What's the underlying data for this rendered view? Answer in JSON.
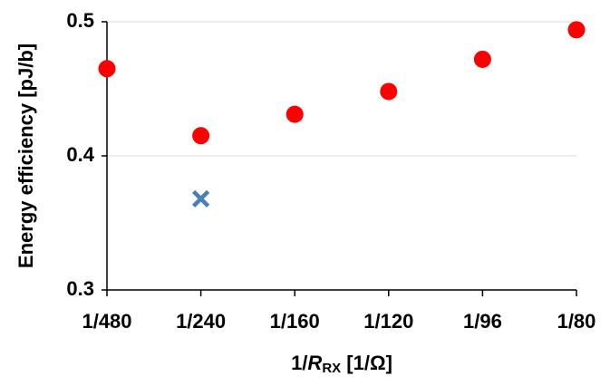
{
  "chart_data": {
    "type": "scatter",
    "categories": [
      "1/480",
      "1/240",
      "1/160",
      "1/120",
      "1/96",
      "1/80"
    ],
    "series": [
      {
        "color": "#ff0000",
        "marker": "circle",
        "values": [
          0.465,
          0.415,
          0.431,
          0.448,
          0.472,
          0.494
        ]
      },
      {
        "color": "#4a7ebb",
        "marker": "cross",
        "values": [
          null,
          0.368,
          null,
          null,
          null,
          null
        ]
      }
    ],
    "ylim": [
      0.3,
      0.5
    ],
    "yticks": [
      0.3,
      0.4,
      0.5
    ],
    "grid": true,
    "ylabel": "Energy efficiency [pJ/b]",
    "xlabel": [
      "1/",
      "R",
      "RX",
      " [1/Ω]"
    ]
  }
}
